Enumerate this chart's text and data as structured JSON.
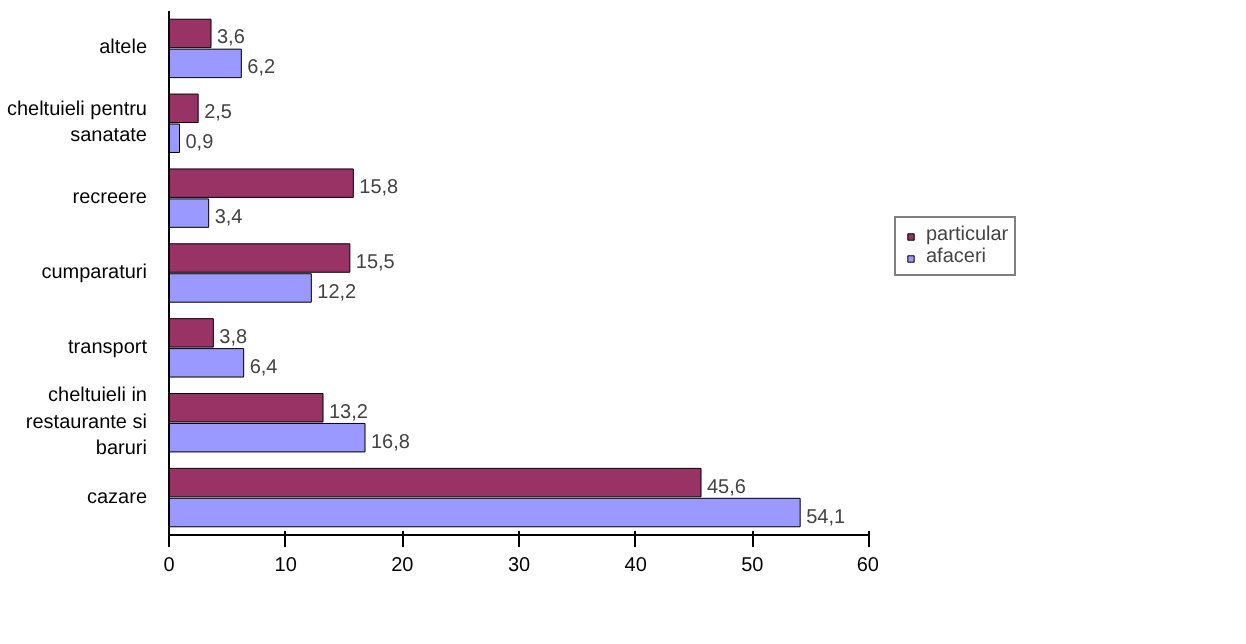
{
  "chart_data": {
    "type": "bar",
    "orientation": "horizontal",
    "categories": [
      "altele",
      "cheltuieli pentru sanatate",
      "recreere",
      "cumparaturi",
      "transport",
      "cheltuieli in restaurante si baruri",
      "cazare"
    ],
    "series": [
      {
        "name": "particular",
        "color": "#993366",
        "values": [
          3.6,
          2.5,
          15.8,
          15.5,
          3.8,
          13.2,
          45.6
        ],
        "value_labels": [
          "3,6",
          "2,5",
          "15,8",
          "15,5",
          "3,8",
          "13,2",
          "45,6"
        ]
      },
      {
        "name": "afaceri",
        "color": "#9999ff",
        "values": [
          6.2,
          0.9,
          3.4,
          12.2,
          6.4,
          16.8,
          54.1
        ],
        "value_labels": [
          "6,2",
          "0,9",
          "3,4",
          "12,2",
          "6,4",
          "16,8",
          "54,1"
        ]
      }
    ],
    "xlim": [
      0,
      60
    ],
    "xticks": [
      0,
      10,
      20,
      30,
      40,
      50,
      60
    ],
    "legend": "right"
  }
}
